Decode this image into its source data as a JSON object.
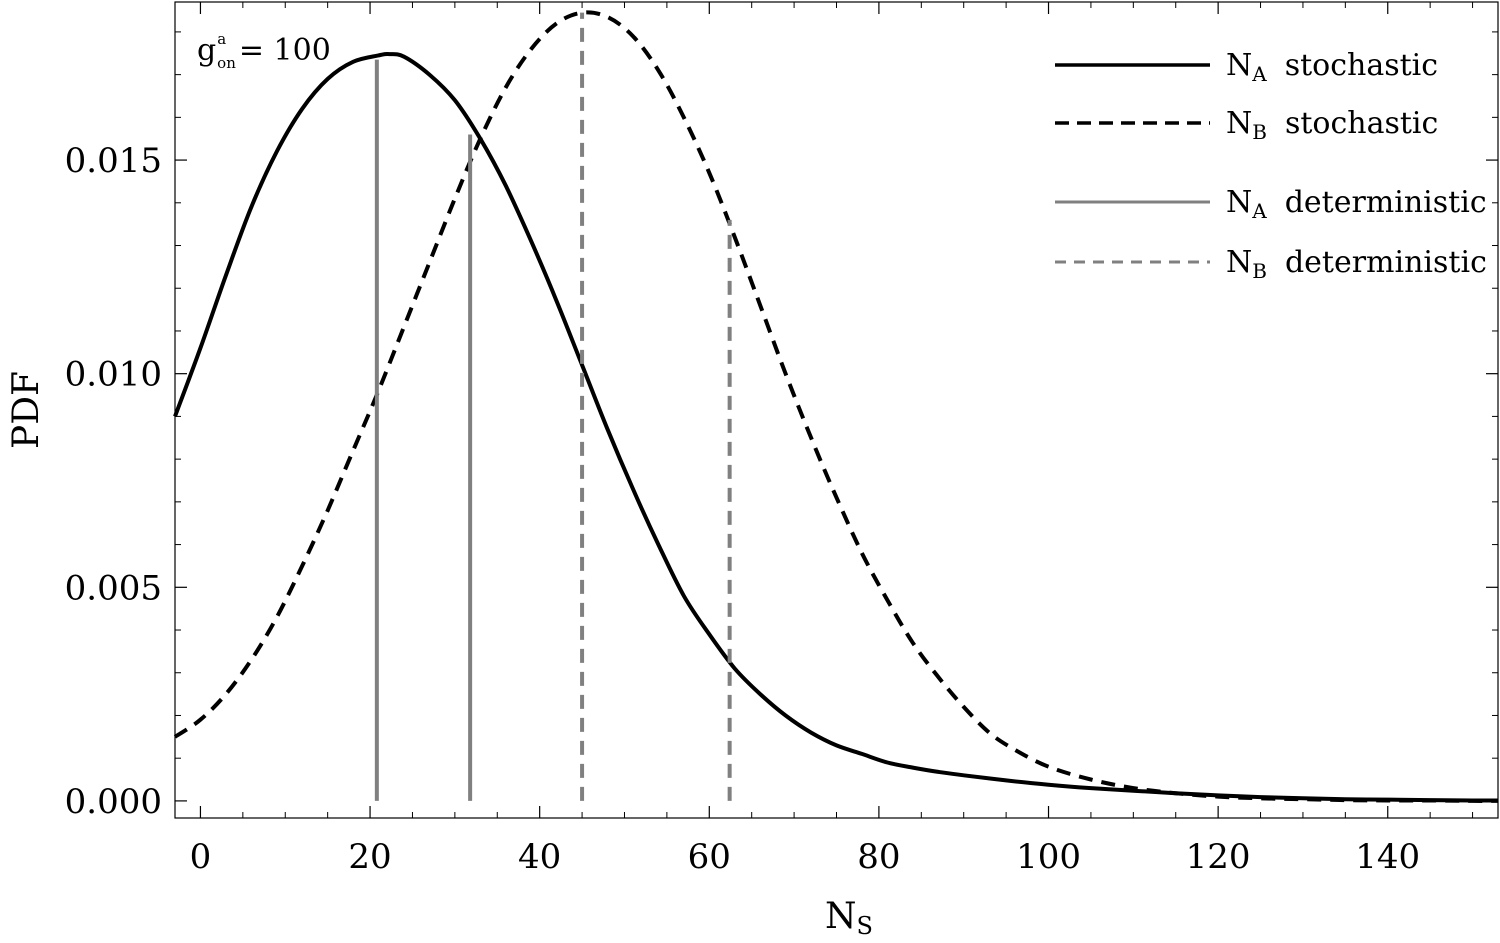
{
  "chart_data": {
    "type": "line",
    "title": "",
    "xlabel": "N",
    "xlabel_sub": "S",
    "ylabel": "PDF",
    "xlim": [
      -3,
      153
    ],
    "ylim": [
      -0.0004,
      0.0187
    ],
    "x_ticks": [
      0,
      20,
      40,
      60,
      80,
      100,
      120,
      140
    ],
    "x_tick_labels": [
      "0",
      "20",
      "40",
      "60",
      "80",
      "100",
      "120",
      "140"
    ],
    "y_ticks": [
      0.0,
      0.005,
      0.01,
      0.015
    ],
    "y_tick_labels": [
      "0.000",
      "0.005",
      "0.010",
      "0.015"
    ],
    "grid": false,
    "legend_position": "top-right",
    "annotation": {
      "base": "g",
      "sup": "a",
      "sub": "on",
      "rest": "= 100"
    },
    "series": [
      {
        "name": "stochastic",
        "name_main": "N",
        "name_sub": "A",
        "style": "solid",
        "color": "#000000",
        "x": [
          -3,
          0,
          3,
          6,
          9,
          12,
          15,
          18,
          21,
          22.3,
          24,
          27,
          30,
          33,
          36,
          39,
          42,
          45,
          48,
          51,
          54,
          57,
          60,
          63,
          66,
          69,
          72,
          75,
          78,
          81,
          84,
          87,
          90,
          95,
          100,
          105,
          110,
          115,
          120,
          125,
          130,
          135,
          140,
          145,
          150,
          153
        ],
        "y": [
          0.009,
          0.0106,
          0.0123,
          0.0139,
          0.0152,
          0.0162,
          0.0169,
          0.0173,
          0.01745,
          0.01748,
          0.01742,
          0.017,
          0.0164,
          0.0155,
          0.0144,
          0.0131,
          0.0117,
          0.0102,
          0.0087,
          0.0073,
          0.006,
          0.0048,
          0.0039,
          0.0031,
          0.0025,
          0.002,
          0.0016,
          0.0013,
          0.0011,
          0.0009,
          0.00078,
          0.00068,
          0.0006,
          0.00048,
          0.00038,
          0.0003,
          0.00024,
          0.00018,
          0.00013,
          9e-05,
          6e-05,
          4e-05,
          3e-05,
          2e-05,
          1e-05,
          1e-05
        ]
      },
      {
        "name": "stochastic",
        "name_main": "N",
        "name_sub": "B",
        "style": "dashed",
        "color": "#000000",
        "x": [
          -3,
          0,
          3,
          6,
          9,
          12,
          15,
          18,
          21,
          24,
          27,
          30,
          33,
          36,
          39,
          42,
          45,
          48,
          51,
          54,
          57,
          60,
          63,
          66,
          69,
          72,
          75,
          78,
          81,
          84,
          87,
          90,
          93,
          96,
          100,
          105,
          110,
          115,
          120,
          125,
          130,
          135,
          140,
          145,
          150,
          153
        ],
        "y": [
          0.0015,
          0.0019,
          0.0025,
          0.0033,
          0.0043,
          0.0055,
          0.0068,
          0.0082,
          0.0096,
          0.0111,
          0.0126,
          0.0141,
          0.0155,
          0.0167,
          0.0176,
          0.0182,
          0.01845,
          0.01835,
          0.0179,
          0.0171,
          0.016,
          0.0147,
          0.0132,
          0.0116,
          0.01,
          0.0085,
          0.0071,
          0.0058,
          0.0047,
          0.0037,
          0.0029,
          0.0022,
          0.0016,
          0.0012,
          0.0008,
          0.0005,
          0.0003,
          0.00018,
          0.0001,
          6e-05,
          4e-05,
          2e-05,
          1e-05,
          1e-05,
          0.0,
          0.0
        ]
      },
      {
        "name": "deterministic",
        "name_main": "N",
        "name_sub": "A",
        "style": "solid",
        "color": "#808080",
        "type": "vline",
        "x": [
          20.8,
          31.8
        ],
        "y_top": [
          0.01735,
          0.0156
        ]
      },
      {
        "name": "deterministic",
        "name_main": "N",
        "name_sub": "B",
        "style": "dashed",
        "color": "#808080",
        "type": "vline",
        "x": [
          45.0,
          62.4
        ],
        "y_top": [
          0.01845,
          0.0136
        ]
      }
    ]
  }
}
